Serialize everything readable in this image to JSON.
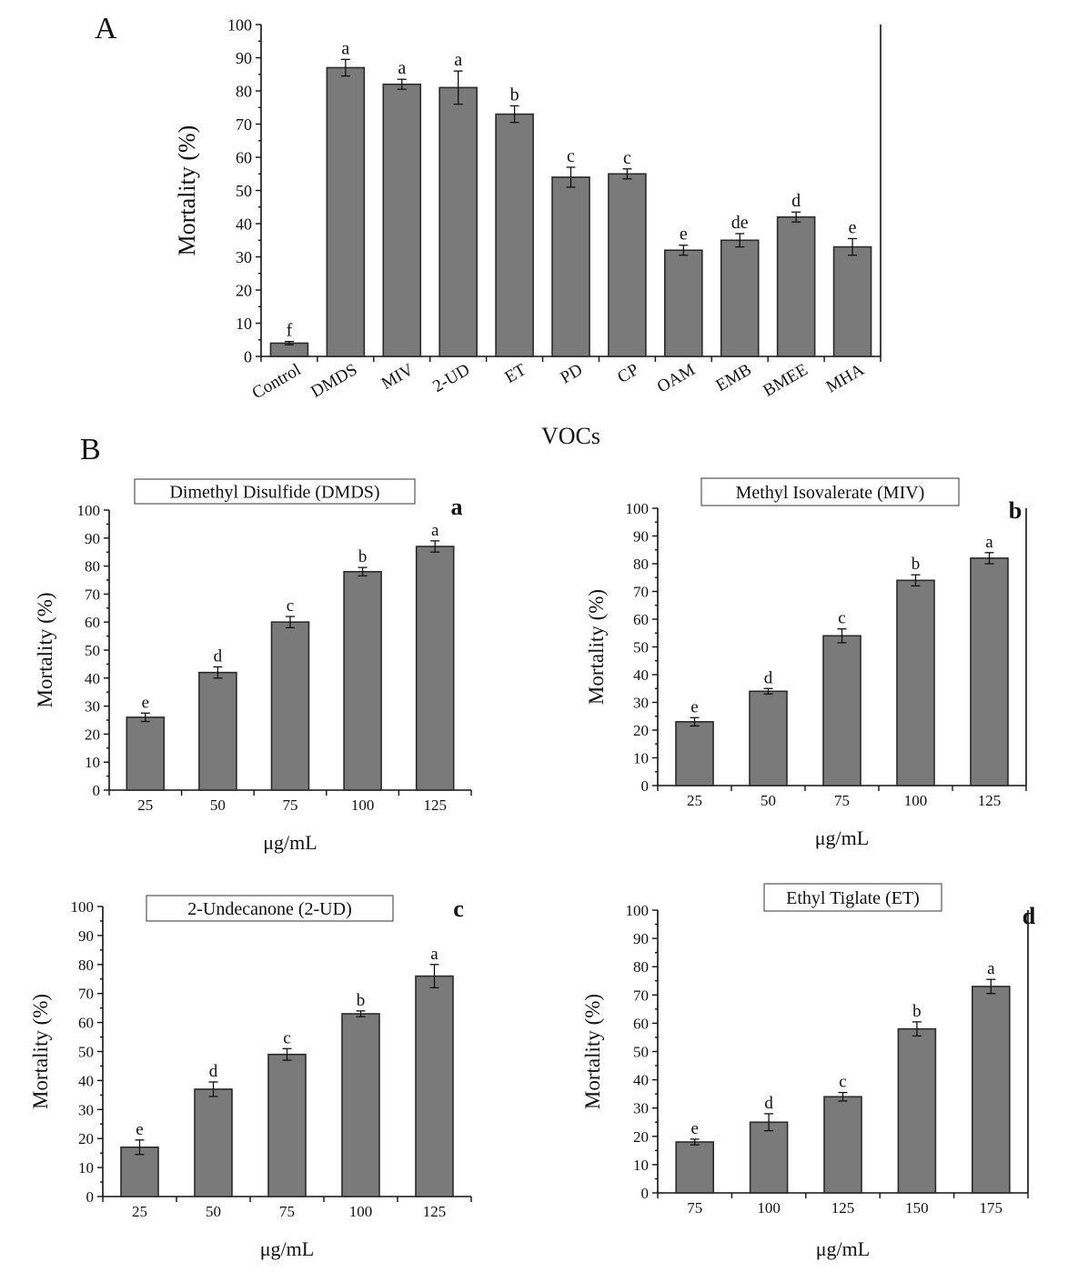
{
  "colors": {
    "bar_fill": "#7a7a7a",
    "bar_stroke": "#2a2a2a",
    "axis": "#111111"
  },
  "panel_labels": {
    "A": "A",
    "B": "B"
  },
  "chart_data": [
    {
      "id": "A",
      "type": "bar",
      "title": "",
      "xlabel": "VOCs",
      "ylabel": "Mortality (%)",
      "ylim": [
        0,
        100
      ],
      "yticks": [
        0,
        10,
        20,
        30,
        40,
        50,
        60,
        70,
        80,
        90,
        100
      ],
      "categories": [
        "Control",
        "DMDS",
        "MIV",
        "2-UD",
        "ET",
        "PD",
        "CP",
        "OAM",
        "EMB",
        "BMEE",
        "MHA"
      ],
      "values": [
        4,
        87,
        82,
        81,
        73,
        54,
        55,
        32,
        35,
        42,
        33
      ],
      "errors": [
        0.5,
        2.5,
        1.5,
        5,
        2.5,
        3,
        1.5,
        1.5,
        2,
        1.5,
        2.5
      ],
      "letters": [
        "f",
        "a",
        "a",
        "a",
        "b",
        "c",
        "c",
        "e",
        "de",
        "d",
        "e"
      ]
    },
    {
      "id": "a",
      "corner_label": "a",
      "type": "bar",
      "title": "Dimethyl Disulfide (DMDS)",
      "xlabel": "μg/mL",
      "ylabel": "Mortality (%)",
      "ylim": [
        0,
        100
      ],
      "yticks": [
        0,
        10,
        20,
        30,
        40,
        50,
        60,
        70,
        80,
        90,
        100
      ],
      "categories": [
        "25",
        "50",
        "75",
        "100",
        "125"
      ],
      "values": [
        26,
        42,
        60,
        78,
        87
      ],
      "errors": [
        1.5,
        2,
        2,
        1.5,
        2
      ],
      "letters": [
        "e",
        "d",
        "c",
        "b",
        "a"
      ]
    },
    {
      "id": "b",
      "corner_label": "b",
      "type": "bar",
      "title": "Methyl Isovalerate (MIV)",
      "xlabel": "μg/mL",
      "ylabel": "Mortality (%)",
      "ylim": [
        0,
        100
      ],
      "yticks": [
        0,
        10,
        20,
        30,
        40,
        50,
        60,
        70,
        80,
        90,
        100
      ],
      "categories": [
        "25",
        "50",
        "75",
        "100",
        "125"
      ],
      "values": [
        23,
        34,
        54,
        74,
        82
      ],
      "errors": [
        1.5,
        1,
        2.5,
        2,
        2
      ],
      "letters": [
        "e",
        "d",
        "c",
        "b",
        "a"
      ]
    },
    {
      "id": "c",
      "corner_label": "c",
      "type": "bar",
      "title": "2-Undecanone (2-UD)",
      "xlabel": "μg/mL",
      "ylabel": "Mortality (%)",
      "ylim": [
        0,
        100
      ],
      "yticks": [
        0,
        10,
        20,
        30,
        40,
        50,
        60,
        70,
        80,
        90,
        100
      ],
      "categories": [
        "25",
        "50",
        "75",
        "100",
        "125"
      ],
      "values": [
        17,
        37,
        49,
        63,
        76
      ],
      "errors": [
        2.5,
        2.5,
        2,
        1,
        4
      ],
      "letters": [
        "e",
        "d",
        "c",
        "b",
        "a"
      ]
    },
    {
      "id": "d",
      "corner_label": "d",
      "type": "bar",
      "title": "Ethyl Tiglate (ET)",
      "xlabel": "μg/mL",
      "ylabel": "Mortality (%)",
      "ylim": [
        0,
        100
      ],
      "yticks": [
        0,
        10,
        20,
        30,
        40,
        50,
        60,
        70,
        80,
        90,
        100
      ],
      "categories": [
        "75",
        "100",
        "125",
        "150",
        "175"
      ],
      "values": [
        18,
        25,
        34,
        58,
        73
      ],
      "errors": [
        1,
        3,
        1.5,
        2.5,
        2.5
      ],
      "letters": [
        "e",
        "d",
        "c",
        "b",
        "a"
      ]
    }
  ]
}
